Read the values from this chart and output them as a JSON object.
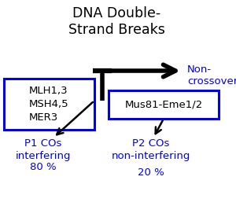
{
  "title": "DNA Double-\nStrand Breaks",
  "title_color": "#000000",
  "title_fontsize": 12.5,
  "box1_text": "MLH1,3\nMSH4,5\nMER3",
  "box2_text": "Mus81-Eme1/2",
  "noncrossover_text": "Non-\ncrossovers",
  "p1_text": "P1 COs\ninterfering",
  "p1_pct": "80 %",
  "p2_text": "P2 COs\nnon-interfering",
  "p2_pct": "20 %",
  "blue_color": "#0000ee",
  "black_color": "#000000",
  "bg_color": "#ffffff",
  "body_fontsize": 9.5
}
